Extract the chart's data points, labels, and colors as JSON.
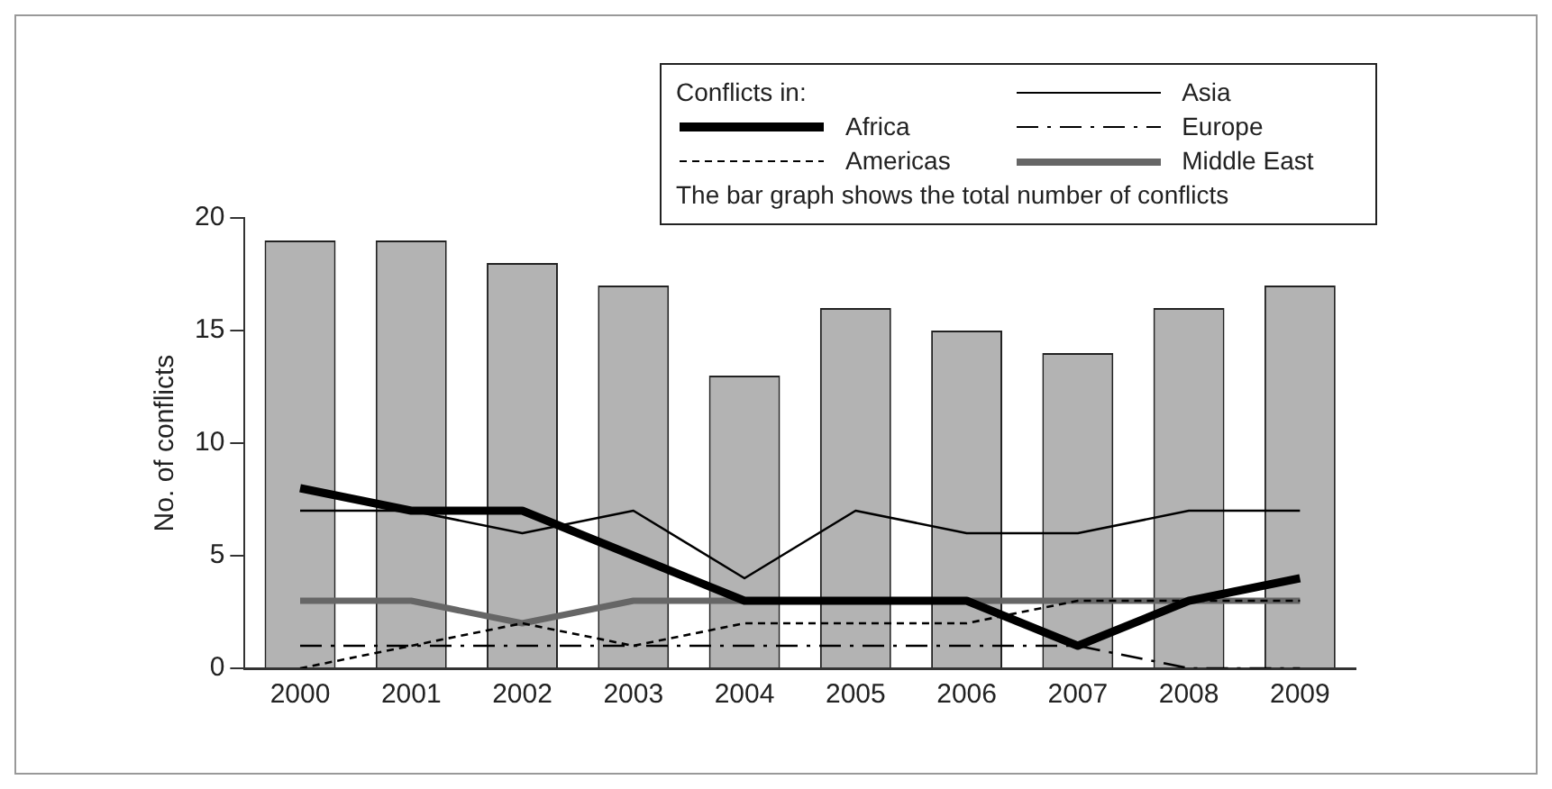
{
  "chart_data": {
    "type": "bar",
    "ylabel": "No. of conflicts",
    "legend_title": "Conflicts in:",
    "annotations": [
      "The bar graph shows the total number of conflicts"
    ],
    "categories": [
      "2000",
      "2001",
      "2002",
      "2003",
      "2004",
      "2005",
      "2006",
      "2007",
      "2008",
      "2009"
    ],
    "series": [
      {
        "color": "#b3b3b3",
        "values": [
          19,
          19,
          18,
          17,
          13,
          16,
          15,
          14,
          16,
          17
        ]
      },
      {
        "type": "line",
        "name": "Africa",
        "color": "#000000",
        "line_style": "solid",
        "values": [
          8,
          7,
          7,
          5,
          3,
          3,
          3,
          1,
          3,
          4
        ]
      },
      {
        "type": "line",
        "name": "Americas",
        "color": "#000000",
        "line_style": "dashed",
        "values": [
          0,
          1,
          2,
          1,
          2,
          2,
          2,
          3,
          3,
          3
        ]
      },
      {
        "type": "line",
        "name": "Asia",
        "color": "#000000",
        "line_style": "solid",
        "values": [
          7,
          7,
          6,
          7,
          4,
          7,
          6,
          6,
          7,
          7
        ]
      },
      {
        "type": "line",
        "name": "Europe",
        "color": "#000000",
        "line_style": "dashdot",
        "values": [
          1,
          1,
          1,
          1,
          1,
          1,
          1,
          1,
          0,
          0
        ]
      },
      {
        "type": "line",
        "name": "Middle East",
        "color": "#666666",
        "line_style": "solid",
        "values": [
          3,
          3,
          2,
          3,
          3,
          3,
          3,
          3,
          3,
          3
        ]
      }
    ],
    "ylim": [
      0,
      20
    ],
    "yticks": [
      0,
      5,
      10,
      15,
      20
    ],
    "grid": false,
    "legend": "top right",
    "marker": "none"
  }
}
